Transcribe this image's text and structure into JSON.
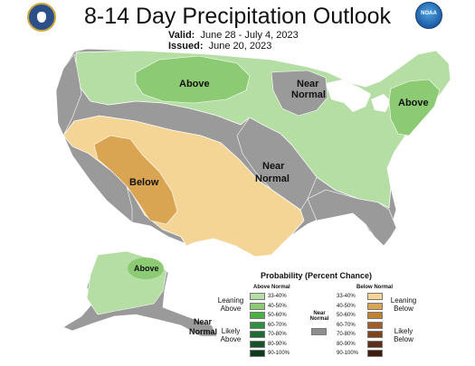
{
  "header": {
    "title": "8-14 Day Precipitation Outlook",
    "valid_label": "Valid:",
    "valid_value": "June 28 - July 4, 2023",
    "issued_label": "Issued:",
    "issued_value": "June 20, 2023",
    "logo_right_text": "NOAA"
  },
  "map_labels": {
    "above_north": "Above",
    "above_northeast": "Above",
    "above_alaska": "Above",
    "near_normal_lakes_1": "Near",
    "near_normal_lakes_2": "Normal",
    "near_normal_central_1": "Near",
    "near_normal_central_2": "Normal",
    "below_southwest": "Below",
    "near_normal_alaska_1": "Near",
    "near_normal_alaska_2": "Normal"
  },
  "legend": {
    "title": "Probability (Percent Chance)",
    "above_header": "Above Normal",
    "below_header": "Below Normal",
    "near_header_1": "Near",
    "near_header_2": "Normal",
    "leaning_above_1": "Leaning",
    "leaning_above_2": "Above",
    "likely_above_1": "Likely",
    "likely_above_2": "Above",
    "leaning_below_1": "Leaning",
    "leaning_below_2": "Below",
    "likely_below_1": "Likely",
    "likely_below_2": "Below",
    "above_rows": [
      {
        "label": "33-40%",
        "color": "#b5dea5"
      },
      {
        "label": "40-50%",
        "color": "#8ccb73"
      },
      {
        "label": "50-60%",
        "color": "#4cb143"
      },
      {
        "label": "60-70%",
        "color": "#2e8f3f"
      },
      {
        "label": "70-80%",
        "color": "#1f6b34"
      },
      {
        "label": "80-90%",
        "color": "#17512a"
      },
      {
        "label": "90-100%",
        "color": "#0e3a1d"
      }
    ],
    "below_rows": [
      {
        "label": "33-40%",
        "color": "#f4d596"
      },
      {
        "label": "40-50%",
        "color": "#d9a552"
      },
      {
        "label": "50-60%",
        "color": "#c08133"
      },
      {
        "label": "60-70%",
        "color": "#a15e2a"
      },
      {
        "label": "70-80%",
        "color": "#7e4420"
      },
      {
        "label": "80-90%",
        "color": "#5c2f17"
      },
      {
        "label": "90-100%",
        "color": "#3c1d0e"
      }
    ],
    "near_normal_color": "#8e8e8e"
  },
  "colors": {
    "near_normal": "#9a9a9a",
    "above_33": "#b5dea5",
    "above_40": "#8ccb73",
    "below_33": "#f4d596",
    "below_40": "#d9a552",
    "ocean": "#ffffff",
    "border": "#ffffff"
  }
}
